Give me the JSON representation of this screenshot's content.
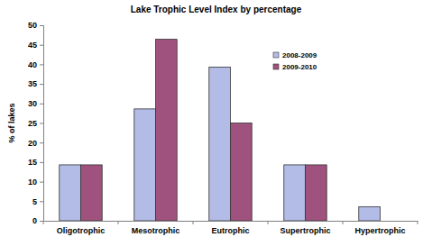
{
  "chart_data": {
    "type": "bar",
    "title": "Lake Trophic Level Index by percentage",
    "y_label": "% of lakes",
    "categories": [
      "Oligotrophic",
      "Mesotrophic",
      "Eutrophic",
      "Supertrophic",
      "Hypertrophic"
    ],
    "series": [
      {
        "name": "2008-2009",
        "color": "#b3bce6",
        "values": [
          14.3,
          28.6,
          39.3,
          14.3,
          3.6
        ]
      },
      {
        "name": "2009-2010",
        "color": "#a0527e",
        "values": [
          14.3,
          46.4,
          25,
          14.3,
          0
        ]
      }
    ],
    "ylim": [
      0,
      50
    ],
    "yticks": [
      0,
      5,
      10,
      15,
      20,
      25,
      30,
      35,
      40,
      45,
      50
    ],
    "grid": false,
    "legend": "top-right"
  }
}
